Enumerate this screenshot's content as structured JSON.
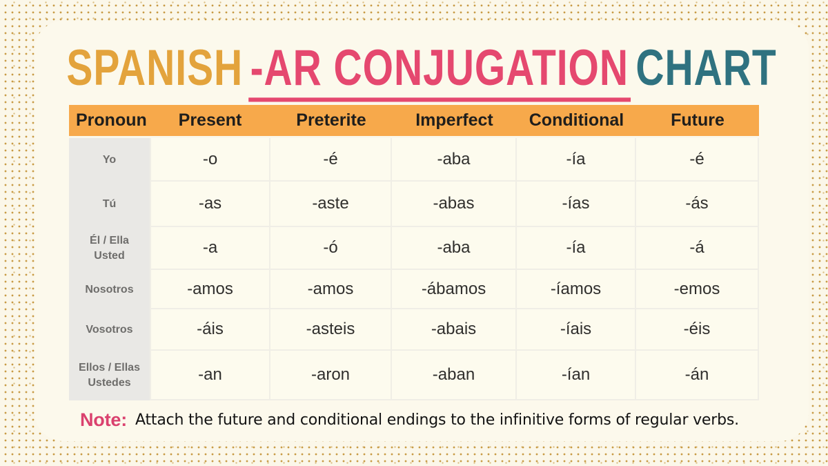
{
  "title": {
    "part1": "SPANISH",
    "part2": "-AR CONJUGATION",
    "part3": "CHART"
  },
  "chart_data": {
    "type": "table",
    "title": "SPANISH -AR CONJUGATION CHART",
    "columns": [
      "Pronoun",
      "Present",
      "Preterite",
      "Imperfect",
      "Conditional",
      "Future"
    ],
    "rows": [
      {
        "pronoun_line1": "Yo",
        "pronoun_line2": "",
        "endings": [
          "-o",
          "-é",
          "-aba",
          "-ía",
          "-é"
        ]
      },
      {
        "pronoun_line1": "Tú",
        "pronoun_line2": "",
        "endings": [
          "-as",
          "-aste",
          "-abas",
          "-ías",
          "-ás"
        ]
      },
      {
        "pronoun_line1": "Él / Ella",
        "pronoun_line2": "Usted",
        "endings": [
          "-a",
          "-ó",
          "-aba",
          "-ía",
          "-á"
        ]
      },
      {
        "pronoun_line1": "Nosotros",
        "pronoun_line2": "",
        "endings": [
          "-amos",
          "-amos",
          "-ábamos",
          "-íamos",
          "-emos"
        ]
      },
      {
        "pronoun_line1": "Vosotros",
        "pronoun_line2": "",
        "endings": [
          "-áis",
          "-asteis",
          "-abais",
          "-íais",
          "-éis"
        ]
      },
      {
        "pronoun_line1": "Ellos / Ellas",
        "pronoun_line2": "Ustedes",
        "endings": [
          "-an",
          "-aron",
          "-aban",
          "-ían",
          "-án"
        ]
      }
    ]
  },
  "note": {
    "label": "Note:",
    "text": "Attach the future and conditional endings to the infinitive forms of regular verbs."
  },
  "colors": {
    "background_cream": "#FBF7E9",
    "dot_gold": "#C89B45",
    "title_gold": "#E3A33C",
    "title_pink": "#E5486F",
    "title_teal": "#2F7280",
    "header_orange": "#F7A94B",
    "pronoun_gray": "#E9E8E5",
    "note_pink": "#DA416E"
  }
}
